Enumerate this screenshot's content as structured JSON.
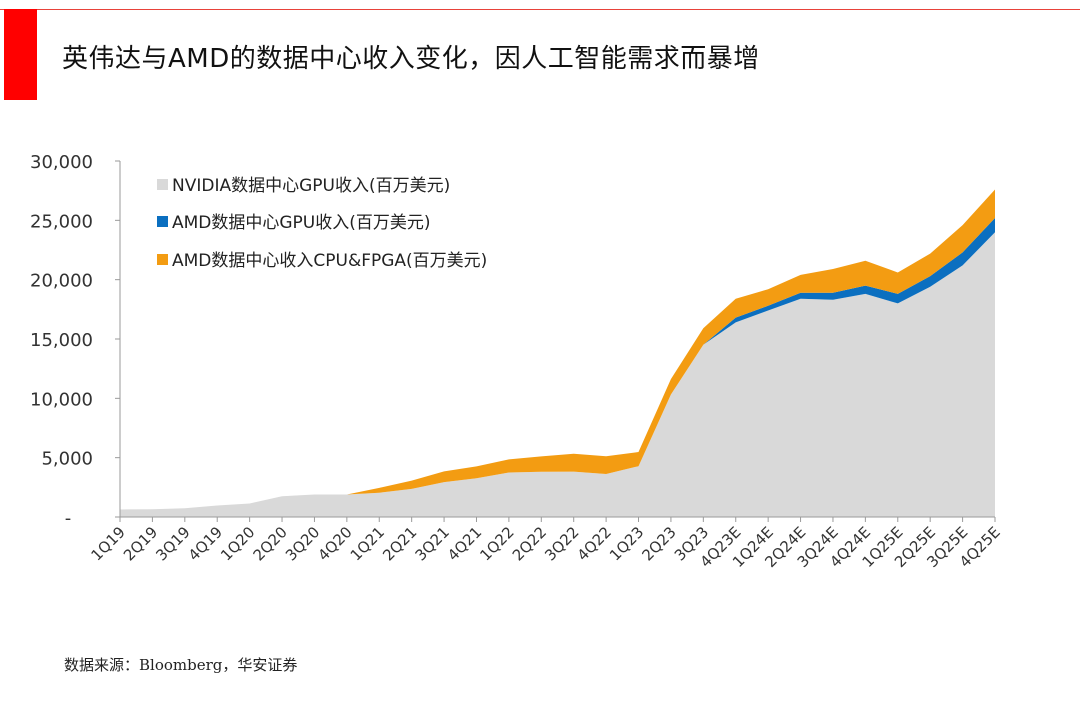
{
  "header": {
    "title": "英伟达与AMD的数据中心收入变化，因人工智能需求而暴增"
  },
  "footer": {
    "source": "数据来源：Bloomberg，华安证券"
  },
  "chart_data": {
    "type": "area",
    "stacked": true,
    "title": "英伟达与AMD的数据中心收入变化，因人工智能需求而暴增",
    "xlabel": "",
    "ylabel": "",
    "ylim": [
      0,
      30000
    ],
    "yticks": [
      0,
      5000,
      10000,
      15000,
      20000,
      25000,
      30000
    ],
    "ytick_labels": [
      "-",
      "5,000",
      "10,000",
      "15,000",
      "20,000",
      "25,000",
      "30,000"
    ],
    "legend_position": "top-left",
    "grid": false,
    "categories": [
      "1Q19",
      "2Q19",
      "3Q19",
      "4Q19",
      "1Q20",
      "2Q20",
      "3Q20",
      "4Q20",
      "1Q21",
      "2Q21",
      "3Q21",
      "4Q21",
      "1Q22",
      "2Q22",
      "3Q22",
      "4Q22",
      "1Q23",
      "2Q23",
      "3Q23",
      "4Q23E",
      "1Q24E",
      "2Q24E",
      "3Q24E",
      "4Q24E",
      "1Q25E",
      "2Q25E",
      "3Q25E",
      "4Q25E"
    ],
    "series": [
      {
        "name": "NVIDIA数据中心GPU收入(百万美元)",
        "color": "#d9d9d9",
        "values": [
          630,
          660,
          730,
          970,
          1140,
          1750,
          1900,
          1900,
          2050,
          2370,
          2940,
          3260,
          3750,
          3810,
          3830,
          3620,
          4280,
          10320,
          14510,
          16400,
          17400,
          18400,
          18300,
          18800,
          18000,
          19400,
          21200,
          24000
        ]
      },
      {
        "name": "AMD数据中心GPU收入(百万美元)",
        "color": "#0b6fc0",
        "values": [
          0,
          0,
          0,
          0,
          0,
          0,
          0,
          0,
          0,
          0,
          0,
          0,
          0,
          0,
          0,
          0,
          0,
          0,
          0,
          400,
          400,
          500,
          600,
          700,
          800,
          900,
          1100,
          1200
        ]
      },
      {
        "name": "AMD数据中心收入CPU&FPGA(百万美元)",
        "color": "#f39c12",
        "values": [
          0,
          0,
          0,
          0,
          0,
          0,
          0,
          0,
          400,
          700,
          900,
          1000,
          1100,
          1300,
          1500,
          1500,
          1200,
          1300,
          1400,
          1600,
          1400,
          1500,
          2000,
          2100,
          1800,
          1900,
          2300,
          2400
        ]
      }
    ]
  }
}
